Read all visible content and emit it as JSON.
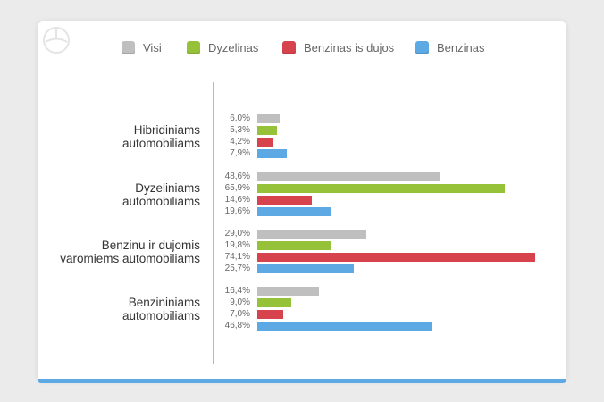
{
  "colors": {
    "Visi": "#c0bfbf",
    "Dyzelinas": "#96c23a",
    "Benzinas is dujos": "#d6434c",
    "Benzinas": "#5da9e3",
    "accent_bottom": "#5da9e3"
  },
  "logo_icon": "circle-swoosh-logo",
  "legend": {
    "items": [
      {
        "label": "Visi",
        "color": "#c0bfbf"
      },
      {
        "label": "Dyzelinas",
        "color": "#96c23a"
      },
      {
        "label": "Benzinas is dujos",
        "color": "#d6434c"
      },
      {
        "label": "Benzinas",
        "color": "#5da9e3"
      }
    ]
  },
  "chart_data": {
    "type": "bar",
    "orientation": "horizontal",
    "categories": [
      "Hibridiniams automobiliams",
      "Dyzeliniams automobiliams",
      "Benzinu ir dujomis varomiems automobiliams",
      "Benzininiams automobiliams"
    ],
    "category_lines": [
      [
        "Hibridiniams",
        "automobiliams"
      ],
      [
        "Dyzeliniams",
        "automobiliams"
      ],
      [
        "Benzinu ir dujomis",
        "varomiems automobiliams"
      ],
      [
        "Benzininiams",
        "automobiliams"
      ]
    ],
    "series": [
      {
        "name": "Visi",
        "values": [
          6.0,
          48.6,
          29.0,
          16.4
        ],
        "labels": [
          "6,0%",
          "48,6%",
          "29,0%",
          "16,4%"
        ]
      },
      {
        "name": "Dyzelinas",
        "values": [
          5.3,
          65.9,
          19.8,
          9.0
        ],
        "labels": [
          "5,3%",
          "65,9%",
          "19,8%",
          "9,0%"
        ]
      },
      {
        "name": "Benzinas is dujos",
        "values": [
          4.2,
          14.6,
          74.1,
          7.0
        ],
        "labels": [
          "4,2%",
          "14,6%",
          "74,1%",
          "7,0%"
        ]
      },
      {
        "name": "Benzinas",
        "values": [
          7.9,
          19.6,
          25.7,
          46.8
        ],
        "labels": [
          "7,9%",
          "19,6%",
          "25,7%",
          "46,8%"
        ]
      }
    ],
    "xlim": [
      0,
      74.1
    ],
    "grid": false,
    "legend_position": "top"
  }
}
